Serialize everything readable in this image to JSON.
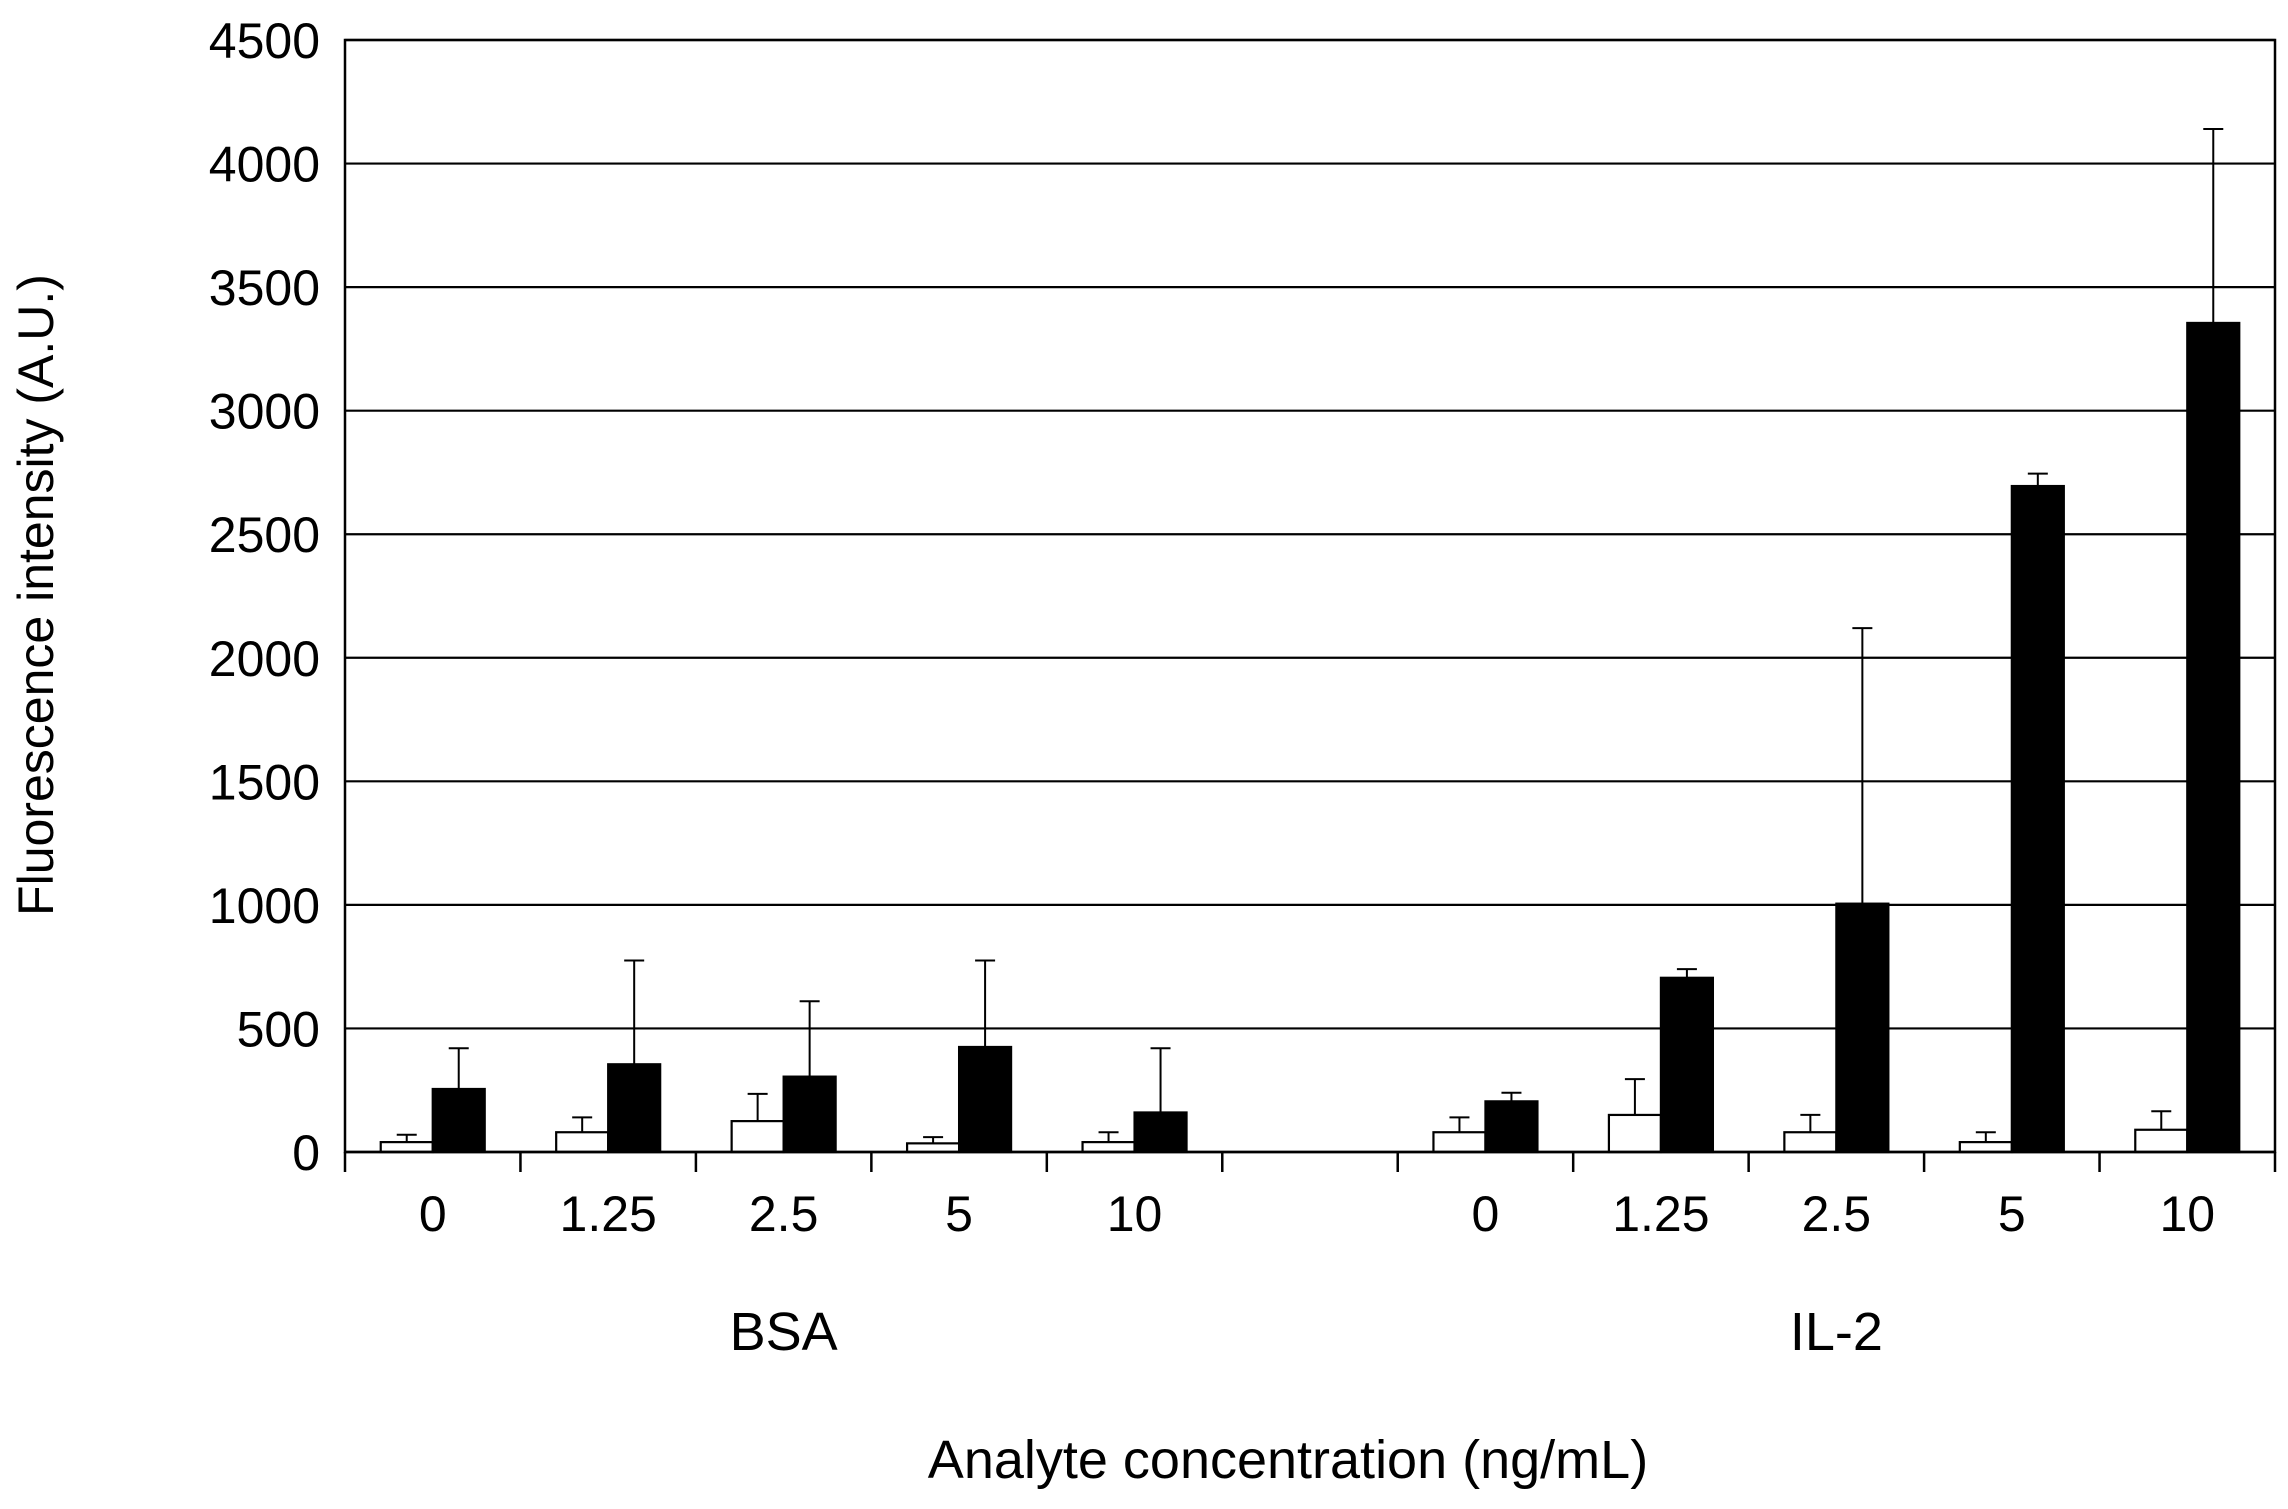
{
  "chart_data": {
    "type": "bar",
    "ylabel": "Fluorescence intensity (A.U.)",
    "xlabel": "Analyte concentration (ng/mL)",
    "ylim": [
      0,
      4500
    ],
    "yticks": [
      0,
      500,
      1000,
      1500,
      2000,
      2500,
      3000,
      3500,
      4000,
      4500
    ],
    "grid": "horizontal",
    "legend": "none",
    "groups": [
      {
        "label": "BSA",
        "categories": [
          "0",
          "1.25",
          "2.5",
          "5",
          "10"
        ],
        "open_bars": {
          "fill": "#ffffff",
          "values": [
            40,
            80,
            125,
            35,
            40
          ],
          "errors": [
            30,
            60,
            110,
            25,
            40
          ]
        },
        "filled_bars": {
          "fill": "#000000",
          "values": [
            255,
            355,
            305,
            425,
            160
          ],
          "errors": [
            165,
            420,
            305,
            350,
            260
          ]
        }
      },
      {
        "label": "IL-2",
        "categories": [
          "0",
          "1.25",
          "2.5",
          "5",
          "10"
        ],
        "open_bars": {
          "fill": "#ffffff",
          "values": [
            80,
            150,
            80,
            40,
            90
          ],
          "errors": [
            60,
            145,
            70,
            40,
            75
          ]
        },
        "filled_bars": {
          "fill": "#000000",
          "values": [
            205,
            705,
            1005,
            2695,
            3355
          ],
          "errors": [
            35,
            35,
            1115,
            50,
            785
          ]
        }
      }
    ]
  }
}
